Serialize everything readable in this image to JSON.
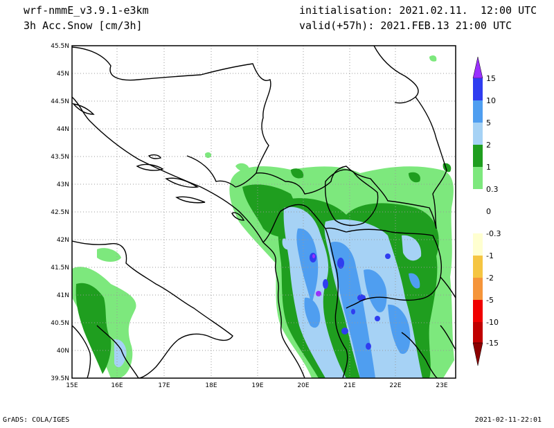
{
  "header": {
    "model": "wrf-nmmE_v3.9.1-e3km",
    "field": "3h Acc.Snow [cm/3h]",
    "init": "initialisation: 2021.02.11.  12:00 UTC",
    "valid": "valid(+57h): 2021.FEB.13 21:00 UTC"
  },
  "footer": {
    "left": "GrADS: COLA/IGES",
    "right": "2021-02-11-22:01"
  },
  "map": {
    "lon_labels": [
      "15E",
      "16E",
      "17E",
      "18E",
      "19E",
      "20E",
      "21E",
      "22E",
      "23E"
    ],
    "lat_labels": [
      "45.5N",
      "45N",
      "44.5N",
      "44N",
      "43.5N",
      "43N",
      "42.5N",
      "42N",
      "41.5N",
      "41N",
      "40.5N",
      "40N",
      "39.5N"
    ]
  },
  "colorbar": {
    "labels": [
      "15",
      "10",
      "5",
      "2",
      "1",
      "0.3",
      "0",
      "-0.3",
      "-1",
      "-2",
      "-5",
      "-10",
      "-15"
    ],
    "colors": [
      "#9a30ff",
      "#2f3df0",
      "#4f9ef0",
      "#a6d2f5",
      "#1f9e1f",
      "#7de87d",
      "#ffffff",
      "#ffffd0",
      "#f5c542",
      "#f5953a",
      "#f00000",
      "#c00000",
      "#8b0000"
    ]
  }
}
